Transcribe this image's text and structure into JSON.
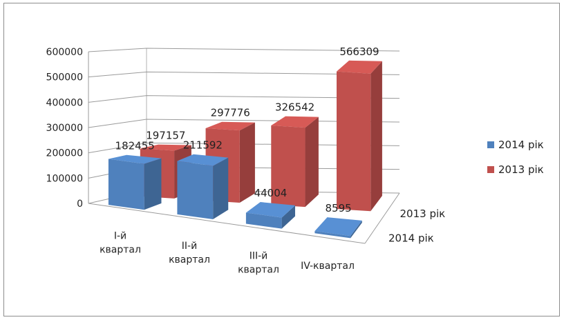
{
  "chart_data": {
    "type": "bar",
    "categories": [
      [
        "I-й",
        "квартал"
      ],
      [
        "II-й",
        "квартал"
      ],
      [
        "III-й",
        "квартал"
      ],
      [
        "IV-квартал"
      ]
    ],
    "series": [
      {
        "name": "2014 рік",
        "values": [
          182455,
          211592,
          44004,
          8595
        ],
        "color": "#4f81bd"
      },
      {
        "name": "2013 рік",
        "values": [
          197157,
          297776,
          326542,
          566309
        ],
        "color": "#c0504d"
      }
    ],
    "depth_labels": [
      "2013 рік",
      "2014 рік"
    ],
    "legend": [
      "2014 рік",
      "2013 рік"
    ],
    "legend_position": "right",
    "ylim": [
      0,
      600000
    ],
    "yticks": [
      "0",
      "100000",
      "200000",
      "300000",
      "400000",
      "500000",
      "600000"
    ],
    "grid": true,
    "style": "3d-clustered-bar"
  }
}
